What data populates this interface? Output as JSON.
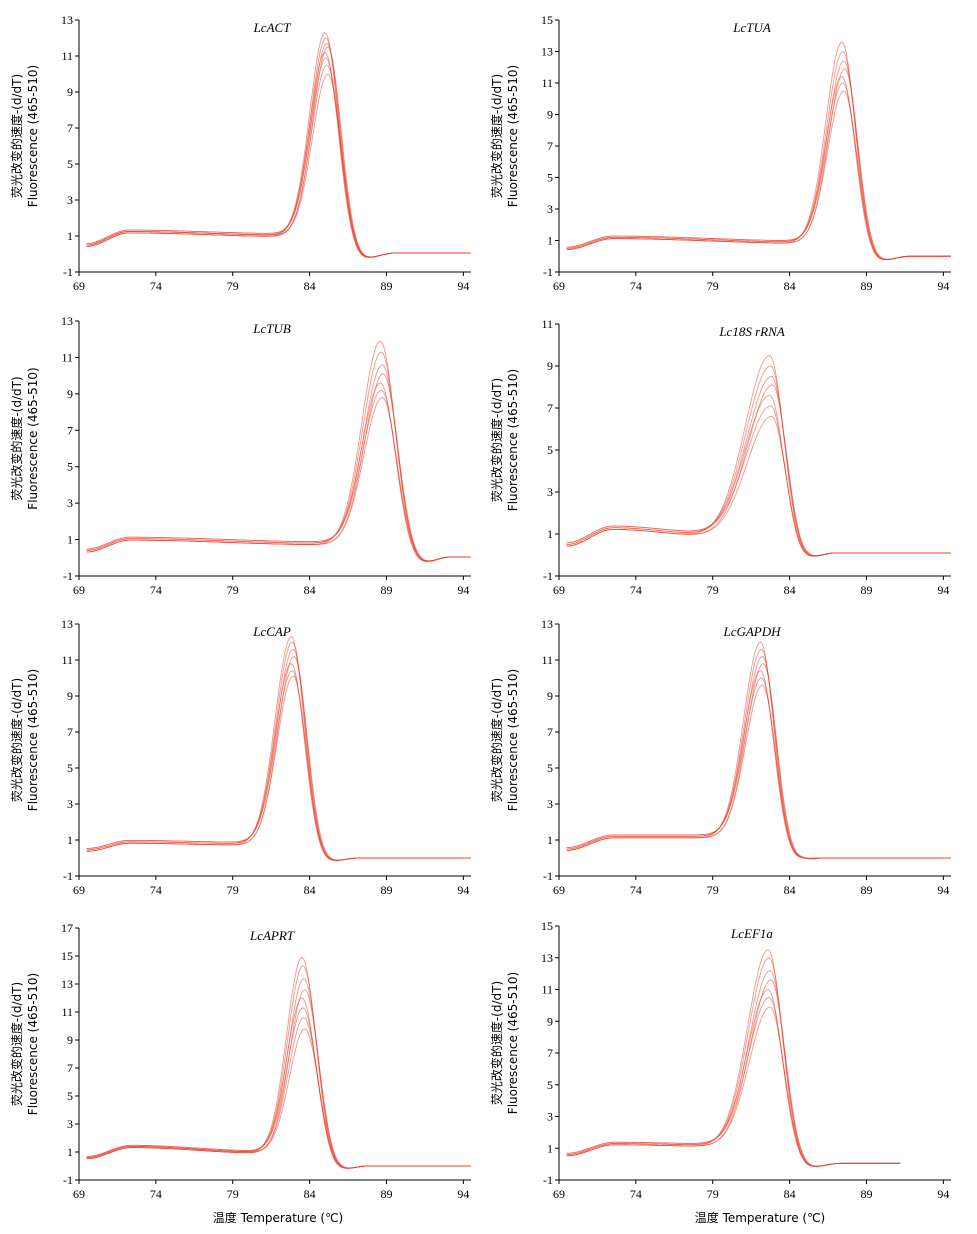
{
  "figure": {
    "ylabel_line1": "荧光改变的速度-(d/dT)",
    "ylabel_line2": "Fluorescence (465-510)",
    "xlabel": "温度 Temperature (℃)",
    "curve_color": "#e8402e"
  },
  "chart_data": [
    {
      "type": "line",
      "title": "LcACT",
      "xlim": [
        69,
        94.5
      ],
      "ylim": [
        -1,
        13
      ],
      "xticks": [
        69,
        74,
        79,
        84,
        89,
        94
      ],
      "yticks": [
        -1,
        1,
        3,
        5,
        7,
        9,
        11,
        13
      ],
      "baseline_start": 0.5,
      "shoulder_x": 72.2,
      "shoulder_h": 1.25,
      "plateau_end": 1.05,
      "rise_x": 82.8,
      "peak_x": 85.1,
      "peak_heights": [
        12.3,
        12.0,
        11.7,
        11.5,
        11.2,
        10.9,
        10.5,
        10.0
      ],
      "width_l": 1.0,
      "width_r": 0.85,
      "dip_x": 87.5,
      "dip_y": -0.25,
      "tail_y": 0.05,
      "end_x": 94.5
    },
    {
      "type": "line",
      "title": "LcTUA",
      "xlim": [
        69,
        94.5
      ],
      "ylim": [
        -1,
        15
      ],
      "xticks": [
        69,
        74,
        79,
        84,
        89,
        94
      ],
      "yticks": [
        -1,
        1,
        3,
        5,
        7,
        9,
        11,
        13,
        15
      ],
      "baseline_start": 0.5,
      "shoulder_x": 72.5,
      "shoulder_h": 1.2,
      "plateau_end": 0.9,
      "rise_x": 85.2,
      "peak_x": 87.5,
      "peak_heights": [
        13.6,
        13.0,
        12.4,
        11.9,
        11.4,
        11.0,
        10.5
      ],
      "width_l": 1.05,
      "width_r": 0.85,
      "dip_x": 89.8,
      "dip_y": -0.3,
      "tail_y": 0.0,
      "end_x": 94.5
    },
    {
      "type": "line",
      "title": "LcTUB",
      "xlim": [
        69,
        94.5
      ],
      "ylim": [
        -1,
        13
      ],
      "xticks": [
        69,
        74,
        79,
        84,
        89,
        94
      ],
      "yticks": [
        -1,
        1,
        3,
        5,
        7,
        9,
        11,
        13
      ],
      "baseline_start": 0.4,
      "shoulder_x": 72.3,
      "shoulder_h": 1.05,
      "plateau_end": 0.8,
      "rise_x": 85.0,
      "peak_x": 88.7,
      "peak_heights": [
        11.9,
        11.3,
        10.6,
        10.1,
        9.6,
        9.2,
        8.8
      ],
      "width_l": 1.2,
      "width_r": 0.95,
      "dip_x": 91.2,
      "dip_y": -0.3,
      "tail_y": 0.05,
      "end_x": 94.5
    },
    {
      "type": "line",
      "title": "Lc18S rRNA",
      "xlim": [
        69,
        94.5
      ],
      "ylim": [
        -1,
        11
      ],
      "xticks": [
        69,
        74,
        79,
        84,
        89,
        94
      ],
      "yticks": [
        -1,
        1,
        3,
        5,
        7,
        9,
        11
      ],
      "baseline_start": 0.5,
      "shoulder_x": 72.5,
      "shoulder_h": 1.3,
      "plateau_end": 1.0,
      "rise_x": 79.0,
      "peak_x": 82.8,
      "peak_heights": [
        9.5,
        9.0,
        8.5,
        8.1,
        7.6,
        7.1,
        6.6
      ],
      "width_l": 1.6,
      "width_r": 0.9,
      "dip_x": 85.0,
      "dip_y": -0.15,
      "tail_y": 0.1,
      "end_x": 94.5
    },
    {
      "type": "line",
      "title": "LcCAP",
      "xlim": [
        69,
        94.5
      ],
      "ylim": [
        -1,
        13
      ],
      "xticks": [
        69,
        74,
        79,
        84,
        89,
        94
      ],
      "yticks": [
        -1,
        1,
        3,
        5,
        7,
        9,
        11,
        13
      ],
      "baseline_start": 0.45,
      "shoulder_x": 72.3,
      "shoulder_h": 0.9,
      "plateau_end": 0.8,
      "rise_x": 80.0,
      "peak_x": 82.9,
      "peak_heights": [
        12.3,
        12.0,
        11.6,
        11.2,
        10.8,
        10.4,
        10.1
      ],
      "width_l": 1.05,
      "width_r": 0.85,
      "dip_x": 85.2,
      "dip_y": -0.2,
      "tail_y": 0.0,
      "end_x": 94.5
    },
    {
      "type": "line",
      "title": "LcGAPDH",
      "xlim": [
        69,
        94.5
      ],
      "ylim": [
        -1,
        13
      ],
      "xticks": [
        69,
        74,
        79,
        84,
        89,
        94
      ],
      "yticks": [
        -1,
        1,
        3,
        5,
        7,
        9,
        11,
        13
      ],
      "baseline_start": 0.5,
      "shoulder_x": 72.5,
      "shoulder_h": 1.2,
      "plateau_end": 1.2,
      "rise_x": 79.5,
      "peak_x": 82.2,
      "peak_heights": [
        12.0,
        11.6,
        11.2,
        10.8,
        10.4,
        10.0,
        9.6
      ],
      "width_l": 1.1,
      "width_r": 0.85,
      "dip_x": 84.5,
      "dip_y": -0.05,
      "tail_y": 0.0,
      "end_x": 94.5
    },
    {
      "type": "line",
      "title": "LcAPRT",
      "xlim": [
        69,
        94.5
      ],
      "ylim": [
        -1,
        17
      ],
      "xticks": [
        69,
        74,
        79,
        84,
        89,
        94
      ],
      "yticks": [
        -1,
        1,
        3,
        5,
        7,
        9,
        11,
        13,
        15,
        17
      ],
      "baseline_start": 0.6,
      "shoulder_x": 72.4,
      "shoulder_h": 1.4,
      "plateau_end": 1.0,
      "rise_x": 81.0,
      "peak_x": 83.6,
      "peak_heights": [
        14.9,
        14.3,
        13.4,
        12.6,
        12.0,
        11.3,
        10.6,
        9.8
      ],
      "width_l": 1.0,
      "width_r": 0.9,
      "dip_x": 85.8,
      "dip_y": -0.3,
      "tail_y": 0.0,
      "end_x": 94.5
    },
    {
      "type": "line",
      "title": "LcEF1a",
      "xlim": [
        69,
        94.5
      ],
      "ylim": [
        -1,
        15
      ],
      "xticks": [
        69,
        74,
        79,
        84,
        89,
        94
      ],
      "yticks": [
        -1,
        1,
        3,
        5,
        7,
        9,
        11,
        13,
        15
      ],
      "baseline_start": 0.6,
      "shoulder_x": 72.6,
      "shoulder_h": 1.3,
      "plateau_end": 1.2,
      "rise_x": 79.5,
      "peak_x": 82.7,
      "peak_heights": [
        13.5,
        13.0,
        12.2,
        11.6,
        11.0,
        10.5,
        9.9
      ],
      "width_l": 1.35,
      "width_r": 0.9,
      "dip_x": 85.3,
      "dip_y": -0.2,
      "tail_y": 0.05,
      "end_x": 91.2
    }
  ]
}
